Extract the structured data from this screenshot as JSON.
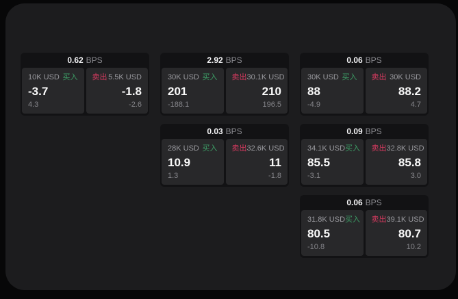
{
  "theme": {
    "background": "#070708",
    "panel_bg": "#1c1c1e",
    "card_bg": "#121214",
    "tile_bg": "#28282a",
    "buy_color": "#3d9e66",
    "sell_color": "#d43a5f",
    "value_color": "#fafafa",
    "muted_color": "#9a9a9f"
  },
  "labels": {
    "bps": "BPS",
    "buy": "买入",
    "sell": "卖出"
  },
  "cards": [
    {
      "bps": "0.62",
      "buy": {
        "amount": "10K USD",
        "value": "-3.7",
        "delta": "4.3"
      },
      "sell": {
        "amount": "5.5K USD",
        "value": "-1.8",
        "delta": "-2.6"
      }
    },
    {
      "bps": "2.92",
      "buy": {
        "amount": "30K USD",
        "value": "201",
        "delta": "-188.1"
      },
      "sell": {
        "amount": "30.1K USD",
        "value": "210",
        "delta": "196.5"
      }
    },
    {
      "bps": "0.06",
      "buy": {
        "amount": "30K USD",
        "value": "88",
        "delta": "-4.9"
      },
      "sell": {
        "amount": "30K USD",
        "value": "88.2",
        "delta": "4.7"
      }
    },
    {
      "bps": "0.03",
      "buy": {
        "amount": "28K USD",
        "value": "10.9",
        "delta": "1.3"
      },
      "sell": {
        "amount": "32.6K USD",
        "value": "11",
        "delta": "-1.8"
      }
    },
    {
      "bps": "0.09",
      "buy": {
        "amount": "34.1K USD",
        "value": "85.5",
        "delta": "-3.1"
      },
      "sell": {
        "amount": "32.8K USD",
        "value": "85.8",
        "delta": "3.0"
      }
    },
    {
      "bps": "0.06",
      "buy": {
        "amount": "31.8K USD",
        "value": "80.5",
        "delta": "-10.8"
      },
      "sell": {
        "amount": "39.1K USD",
        "value": "80.7",
        "delta": "10.2"
      }
    }
  ]
}
